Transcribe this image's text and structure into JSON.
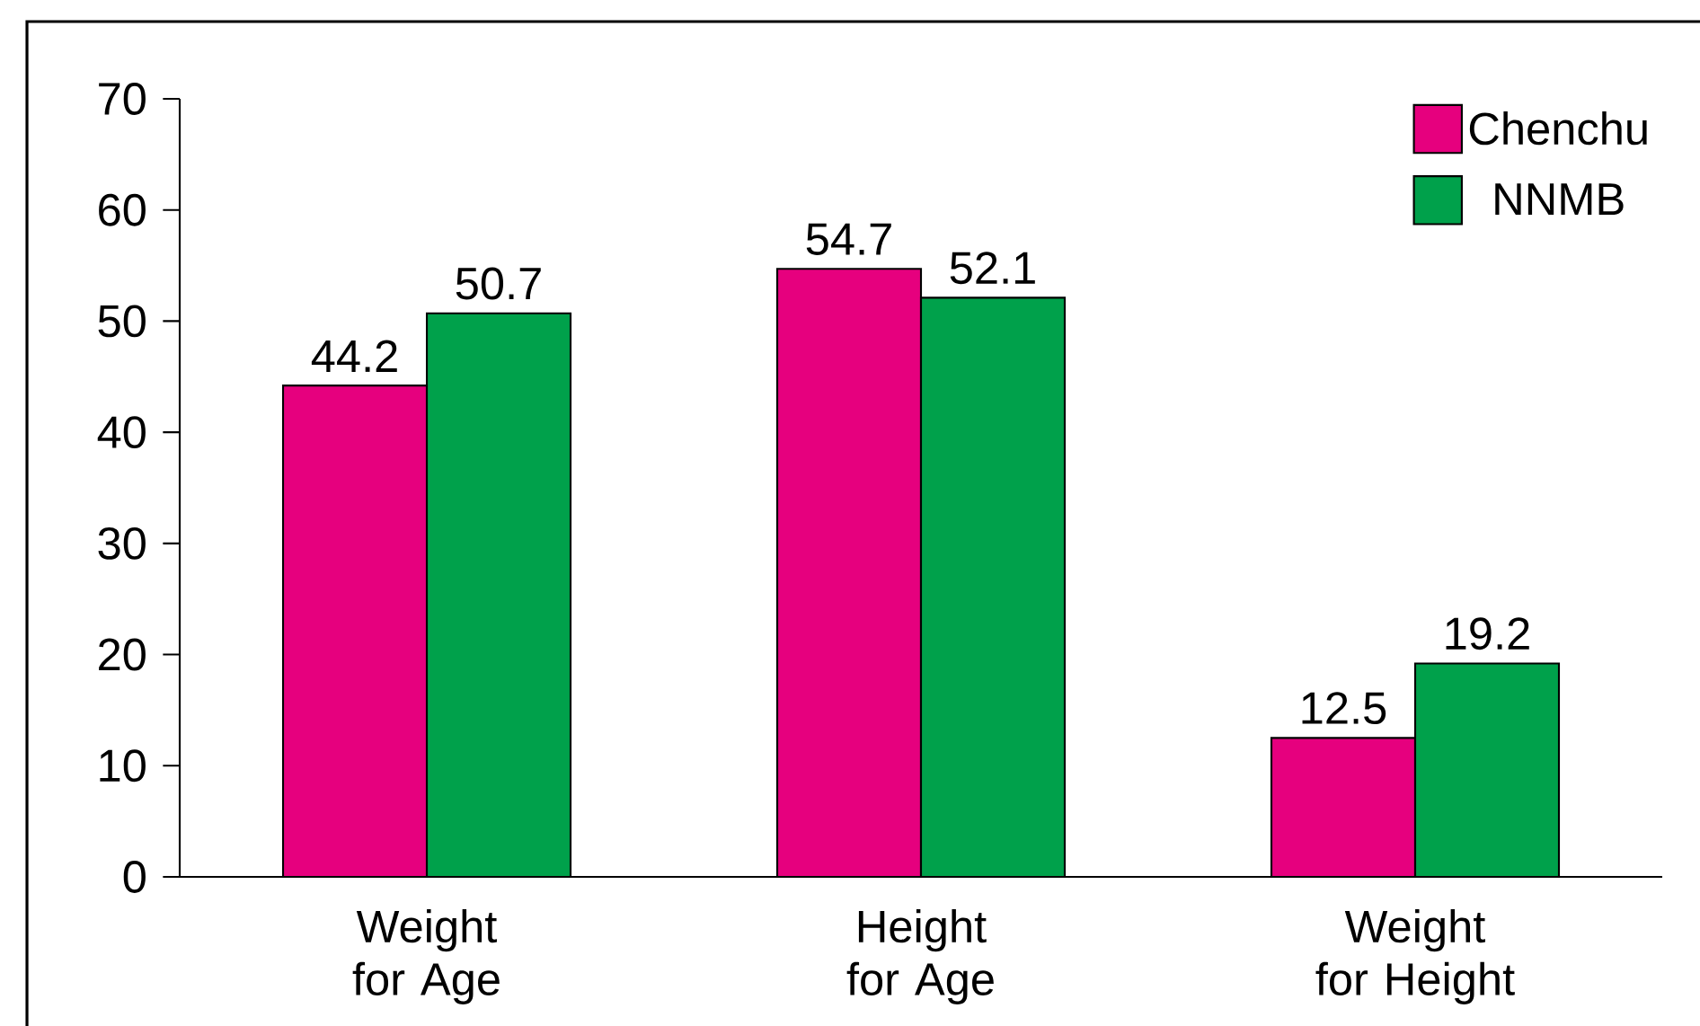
{
  "chart_data": {
    "type": "bar",
    "categories": [
      "Weight for Age",
      "Height for Age",
      "Weight for Height"
    ],
    "series": [
      {
        "name": "Chenchu",
        "color": "#e6007e",
        "values": [
          44.2,
          54.7,
          12.5
        ]
      },
      {
        "name": "NNMB",
        "color": "#00a14b",
        "values": [
          50.7,
          52.1,
          19.2
        ]
      }
    ],
    "ylim": [
      0,
      70
    ],
    "yticks": [
      0,
      10,
      20,
      30,
      40,
      50,
      60,
      70
    ],
    "data_labels": true,
    "legend": "top right",
    "grid": false
  }
}
